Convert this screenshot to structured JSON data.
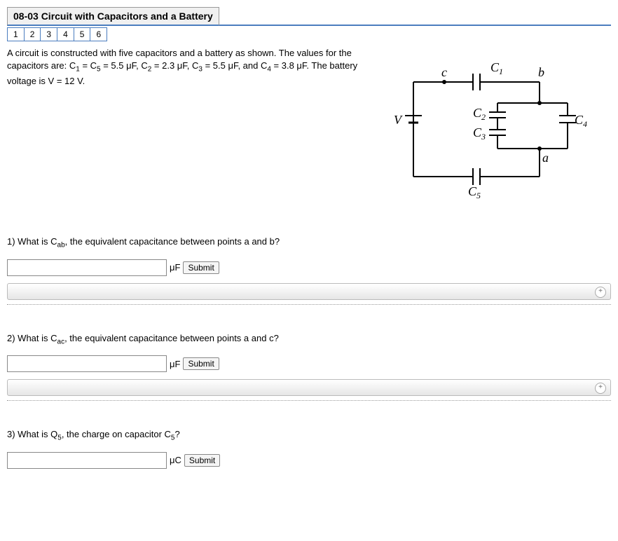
{
  "title": "08-03 Circuit with Capacitors and a Battery",
  "nav": [
    "1",
    "2",
    "3",
    "4",
    "5",
    "6"
  ],
  "problem_html": "A circuit is constructed with five capacitors and a battery as shown. The values for the capacitors are: C<sub>1</sub> = C<sub>5</sub> = 5.5 μF, C<sub>2</sub> = 2.3 μF, C<sub>3</sub> = 5.5 μF, and C<sub>4</sub> = 3.8 μF. The battery voltage is V = 12 V.",
  "diagram": {
    "labels": {
      "V": "V",
      "C1": "C1",
      "C2": "C2",
      "C3": "C3",
      "C4": "C4",
      "C5": "C5",
      "a": "a",
      "b": "b",
      "c": "c"
    }
  },
  "questions": [
    {
      "q_html": "1) What is C<sub>ab</sub>, the equivalent capacitance between points a and b?",
      "unit": "μF",
      "submit": "Submit",
      "expand": true
    },
    {
      "q_html": "2) What is C<sub>ac</sub>, the equivalent capacitance between points a and c?",
      "unit": "μF",
      "submit": "Submit",
      "expand": true
    },
    {
      "q_html": "3) What is Q<sub>5</sub>, the charge on capacitor C<sub>5</sub>?",
      "unit": "μC",
      "submit": "Submit",
      "expand": false
    }
  ]
}
